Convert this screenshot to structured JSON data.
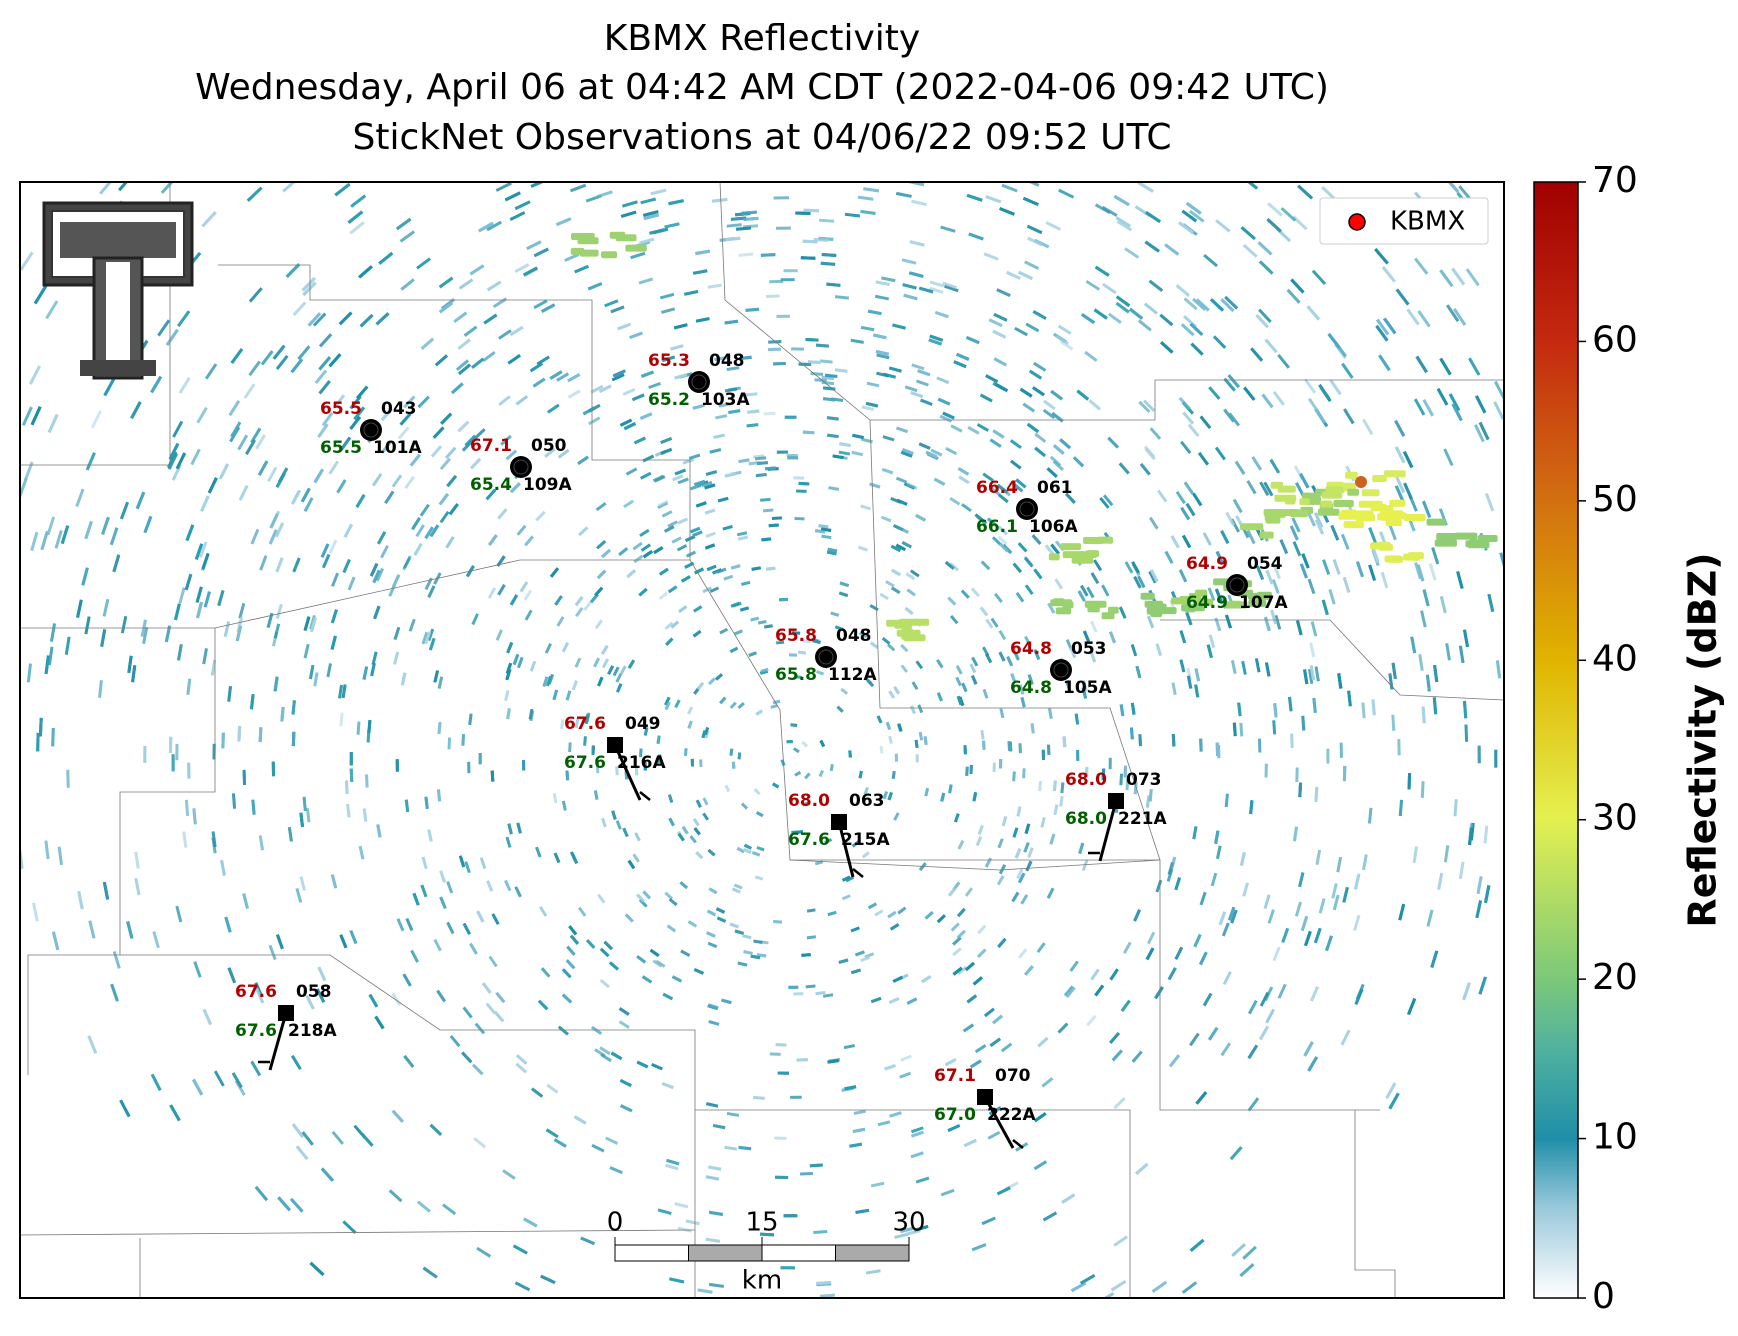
{
  "title": [
    "KBMX Reflectivity",
    "Wednesday, April 06 at 04:42 AM CDT (2022-04-06 09:42 UTC)",
    "StickNet Observations at 04/06/22 09:52 UTC"
  ],
  "legend": {
    "label": "KBMX",
    "color": "#ff0000"
  },
  "colorbar": {
    "label": "Reflectivity (dBZ)",
    "lim": [
      0,
      70
    ],
    "ticks": [
      0,
      10,
      20,
      30,
      40,
      50,
      60,
      70
    ]
  },
  "scale_bar": {
    "ticks": [
      0,
      15,
      30
    ],
    "unit": "km"
  },
  "stations": [
    {
      "id": "101A",
      "temp": "65.5",
      "dewpoint": "65.5",
      "pressure": "043"
    },
    {
      "id": "109A",
      "temp": "67.1",
      "dewpoint": "65.4",
      "pressure": "050"
    },
    {
      "id": "103A",
      "temp": "65.3",
      "dewpoint": "65.2",
      "pressure": "048"
    },
    {
      "id": "106A",
      "temp": "66.4",
      "dewpoint": "66.1",
      "pressure": "061"
    },
    {
      "id": "107A",
      "temp": "64.9",
      "dewpoint": "64.9",
      "pressure": "054"
    },
    {
      "id": "112A",
      "temp": "65.8",
      "dewpoint": "65.8",
      "pressure": "048"
    },
    {
      "id": "105A",
      "temp": "64.8",
      "dewpoint": "64.8",
      "pressure": "053"
    },
    {
      "id": "216A",
      "temp": "67.6",
      "dewpoint": "67.6",
      "pressure": "049"
    },
    {
      "id": "215A",
      "temp": "68.0",
      "dewpoint": "67.6",
      "pressure": "063"
    },
    {
      "id": "221A",
      "temp": "68.0",
      "dewpoint": "68.0",
      "pressure": "073"
    },
    {
      "id": "218A",
      "temp": "67.6",
      "dewpoint": "67.6",
      "pressure": "058"
    },
    {
      "id": "222A",
      "temp": "67.1",
      "dewpoint": "67.0",
      "pressure": "070"
    }
  ]
}
